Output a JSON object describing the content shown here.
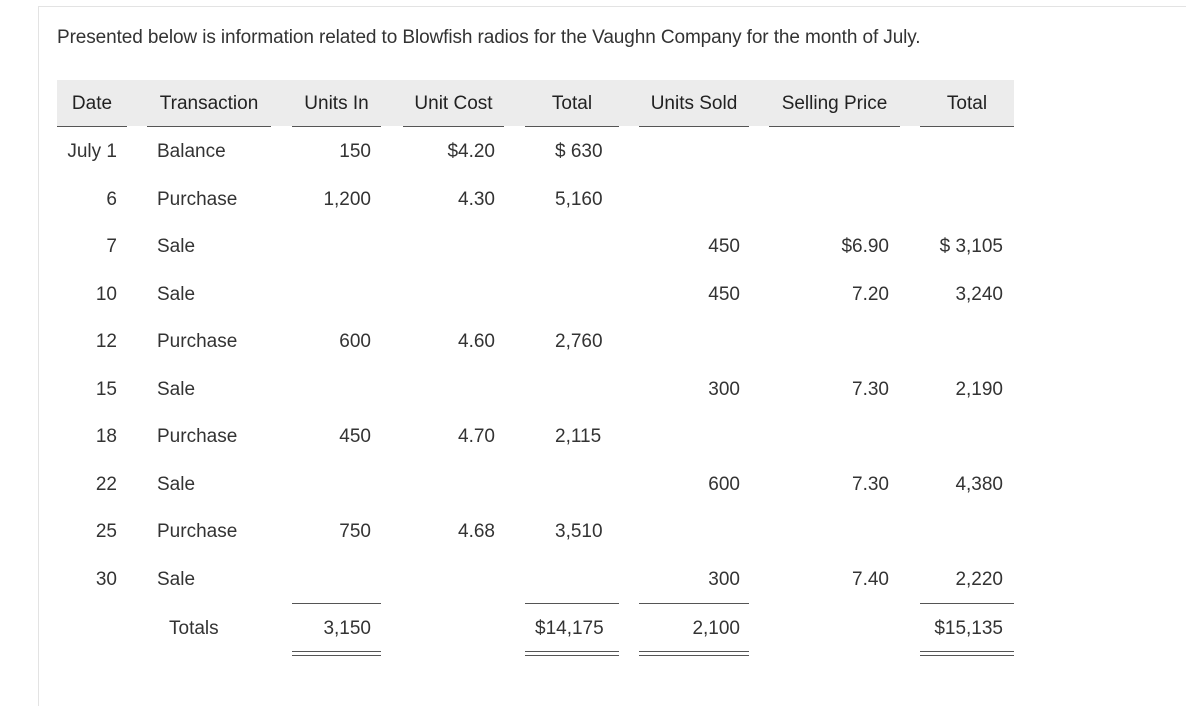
{
  "intro": "Presented below is information related to Blowfish radios for the Vaughn Company for the month of July.",
  "headers": {
    "date": "Date",
    "transaction": "Transaction",
    "units_in": "Units In",
    "unit_cost": "Unit Cost",
    "total_in": "Total",
    "units_sold": "Units Sold",
    "selling_price": "Selling Price",
    "total_sales": "Total"
  },
  "rows": [
    {
      "date": "July 1",
      "transaction": "Balance",
      "units_in": "150",
      "unit_cost": "$4.20",
      "total_in": "$ 630",
      "units_sold": "",
      "selling_price": "",
      "total_sales": ""
    },
    {
      "date": "6",
      "transaction": "Purchase",
      "units_in": "1,200",
      "unit_cost": "4.30",
      "total_in": "5,160",
      "units_sold": "",
      "selling_price": "",
      "total_sales": ""
    },
    {
      "date": "7",
      "transaction": "Sale",
      "units_in": "",
      "unit_cost": "",
      "total_in": "",
      "units_sold": "450",
      "selling_price": "$6.90",
      "total_sales": "$ 3,105"
    },
    {
      "date": "10",
      "transaction": "Sale",
      "units_in": "",
      "unit_cost": "",
      "total_in": "",
      "units_sold": "450",
      "selling_price": "7.20",
      "total_sales": "3,240"
    },
    {
      "date": "12",
      "transaction": "Purchase",
      "units_in": "600",
      "unit_cost": "4.60",
      "total_in": "2,760",
      "units_sold": "",
      "selling_price": "",
      "total_sales": ""
    },
    {
      "date": "15",
      "transaction": "Sale",
      "units_in": "",
      "unit_cost": "",
      "total_in": "",
      "units_sold": "300",
      "selling_price": "7.30",
      "total_sales": "2,190"
    },
    {
      "date": "18",
      "transaction": "Purchase",
      "units_in": "450",
      "unit_cost": "4.70",
      "total_in": "2,115",
      "units_sold": "",
      "selling_price": "",
      "total_sales": ""
    },
    {
      "date": "22",
      "transaction": "Sale",
      "units_in": "",
      "unit_cost": "",
      "total_in": "",
      "units_sold": "600",
      "selling_price": "7.30",
      "total_sales": "4,380"
    },
    {
      "date": "25",
      "transaction": "Purchase",
      "units_in": "750",
      "unit_cost": "4.68",
      "total_in": "3,510",
      "units_sold": "",
      "selling_price": "",
      "total_sales": ""
    },
    {
      "date": "30",
      "transaction": "Sale",
      "units_in": "",
      "unit_cost": "",
      "total_in": "",
      "units_sold": "300",
      "selling_price": "7.40",
      "total_sales": "2,220"
    }
  ],
  "totals": {
    "label": "Totals",
    "units_in": "3,150",
    "total_in": "$14,175",
    "units_sold": "2,100",
    "total_sales": "$15,135"
  }
}
